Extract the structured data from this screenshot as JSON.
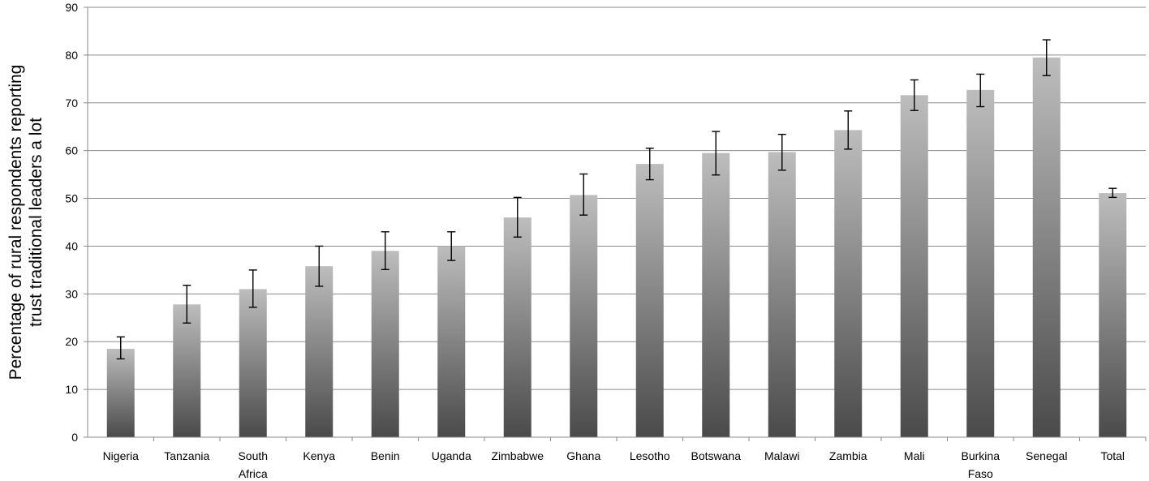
{
  "chart_data": {
    "type": "bar",
    "title": "",
    "xlabel": "",
    "ylabel": "Percentage of rural respondents reporting trust traditional leaders a lot",
    "ylabel_lines": [
      "Percentage of rural respondents reporting",
      "trust traditional leaders a lot"
    ],
    "ylim": [
      0,
      90
    ],
    "yticks": [
      0,
      10,
      20,
      30,
      40,
      50,
      60,
      70,
      80,
      90
    ],
    "grid": true,
    "legend": "none",
    "categories": [
      [
        "Nigeria"
      ],
      [
        "Tanzania"
      ],
      [
        "South",
        "Africa"
      ],
      [
        "Kenya"
      ],
      [
        "Benin"
      ],
      [
        "Uganda"
      ],
      [
        "Zimbabwe"
      ],
      [
        "Ghana"
      ],
      [
        "Lesotho"
      ],
      [
        "Botswana"
      ],
      [
        "Malawi"
      ],
      [
        "Zambia"
      ],
      [
        "Mali"
      ],
      [
        "Burkina",
        "Faso"
      ],
      [
        "Senegal"
      ],
      [
        "Total"
      ]
    ],
    "values": [
      18.5,
      27.8,
      31.0,
      35.8,
      39.0,
      40.0,
      46.0,
      50.7,
      57.2,
      59.5,
      59.7,
      64.3,
      71.6,
      72.7,
      79.5,
      51.1
    ],
    "error_low": [
      16.4,
      23.9,
      27.2,
      31.6,
      35.1,
      37.0,
      41.9,
      46.5,
      53.9,
      54.9,
      55.9,
      60.3,
      68.4,
      69.2,
      75.7,
      50.2
    ],
    "error_high": [
      21.0,
      31.8,
      35.0,
      40.0,
      43.0,
      43.0,
      50.2,
      55.1,
      60.5,
      64.0,
      63.4,
      68.3,
      74.8,
      76.0,
      83.2,
      52.1
    ],
    "colors": {
      "bar_light": "#bdbdbd",
      "bar_dark": "#4a4a4a",
      "grid": "#8a8a8a",
      "axis": "#8a8a8a"
    }
  }
}
